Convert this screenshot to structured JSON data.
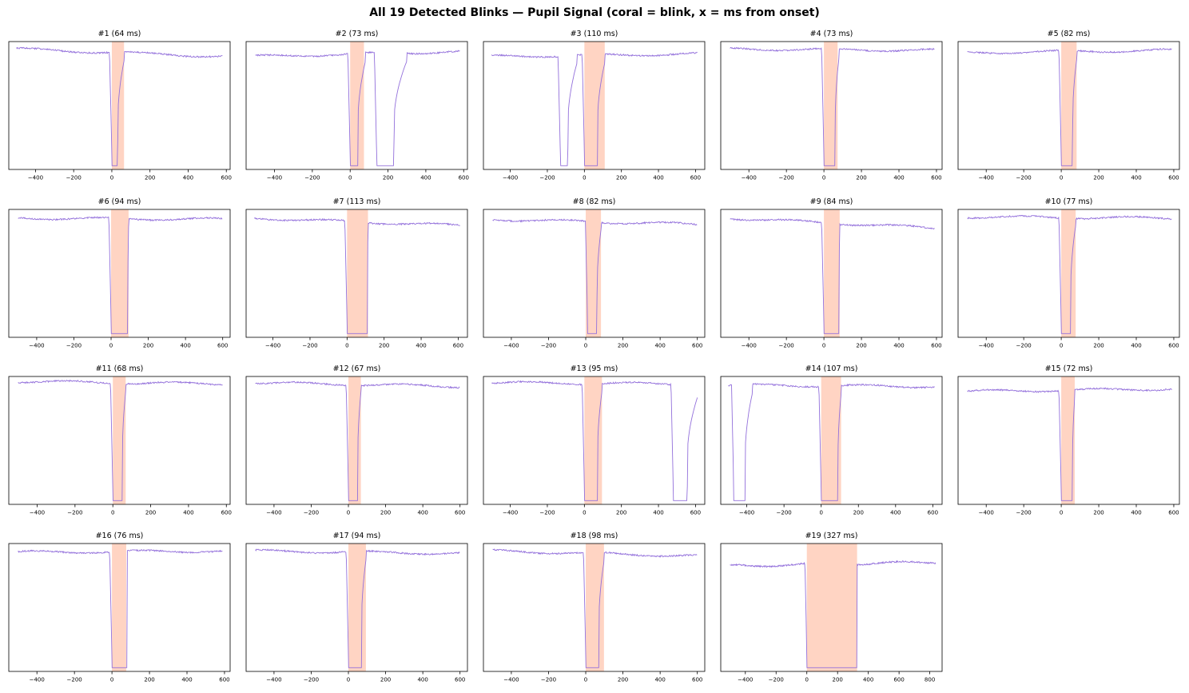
{
  "figure": {
    "title": "All 19 Detected Blinks — Pupil Signal (coral = blink, x = ms from onset)"
  },
  "colors": {
    "signal": "#9370DB",
    "blink": "#FFA07A",
    "axes": "#000000"
  },
  "chart_data": [
    {
      "type": "line",
      "title": "#1 (64 ms)",
      "blink_ms": 64,
      "xlim": [
        -540,
        620
      ],
      "xticks": [
        -400,
        -200,
        0,
        200,
        400,
        600
      ],
      "baseline": [
        0.94,
        0.88
      ],
      "dips": [
        {
          "start": 0,
          "end": 30,
          "off": 64
        }
      ],
      "grid": false,
      "legend": "none"
    },
    {
      "type": "line",
      "title": "#2 (73 ms)",
      "blink_ms": 73,
      "xlim": [
        -550,
        620
      ],
      "xticks": [
        -400,
        -200,
        0,
        200,
        400,
        600
      ],
      "baseline": [
        0.88,
        0.92
      ],
      "dips": [
        {
          "start": 0,
          "end": 40,
          "off": 80
        },
        {
          "start": 140,
          "end": 230,
          "off": 300
        }
      ],
      "grid": false,
      "legend": "none"
    },
    {
      "type": "line",
      "title": "#3 (110 ms)",
      "blink_ms": 110,
      "xlim": [
        -545,
        650
      ],
      "xticks": [
        -400,
        -200,
        0,
        200,
        400,
        600
      ],
      "baseline": [
        0.88,
        0.9
      ],
      "dips": [
        {
          "start": -130,
          "end": -90,
          "off": -40
        },
        {
          "start": 0,
          "end": 70,
          "off": 110
        }
      ],
      "grid": false,
      "legend": "none"
    },
    {
      "type": "line",
      "title": "#4 (73 ms)",
      "blink_ms": 73,
      "xlim": [
        -550,
        630
      ],
      "xticks": [
        -400,
        -200,
        0,
        200,
        400,
        600
      ],
      "baseline": [
        0.94,
        0.93
      ],
      "dips": [
        {
          "start": 0,
          "end": 60,
          "off": 80
        }
      ],
      "grid": false,
      "legend": "none"
    },
    {
      "type": "line",
      "title": "#5 (82 ms)",
      "blink_ms": 82,
      "xlim": [
        -550,
        630
      ],
      "xticks": [
        -400,
        -200,
        0,
        200,
        400,
        600
      ],
      "baseline": [
        0.91,
        0.93
      ],
      "dips": [
        {
          "start": 0,
          "end": 60,
          "off": 82
        }
      ],
      "grid": false,
      "legend": "none"
    },
    {
      "type": "line",
      "title": "#6 (94 ms)",
      "blink_ms": 94,
      "xlim": [
        -550,
        640
      ],
      "xticks": [
        -400,
        -200,
        0,
        200,
        400,
        600
      ],
      "baseline": [
        0.93,
        0.92
      ],
      "dips": [
        {
          "start": 0,
          "end": 90,
          "off": 94
        }
      ],
      "grid": false,
      "legend": "none"
    },
    {
      "type": "line",
      "title": "#7 (113 ms)",
      "blink_ms": 113,
      "xlim": [
        -545,
        650
      ],
      "xticks": [
        -400,
        -200,
        0,
        200,
        400,
        600
      ],
      "baseline": [
        0.93,
        0.87
      ],
      "dips": [
        {
          "start": 0,
          "end": 110,
          "off": 113
        }
      ],
      "grid": false,
      "legend": "none"
    },
    {
      "type": "line",
      "title": "#8 (82 ms)",
      "blink_ms": 82,
      "xlim": [
        -550,
        640
      ],
      "xticks": [
        -400,
        -200,
        0,
        200,
        400,
        600
      ],
      "baseline": [
        0.92,
        0.88
      ],
      "dips": [
        {
          "start": 10,
          "end": 60,
          "off": 82
        }
      ],
      "grid": false,
      "legend": "none"
    },
    {
      "type": "line",
      "title": "#9 (84 ms)",
      "blink_ms": 84,
      "xlim": [
        -550,
        630
      ],
      "xticks": [
        -400,
        -200,
        0,
        200,
        400,
        600
      ],
      "baseline": [
        0.93,
        0.85
      ],
      "dips": [
        {
          "start": 0,
          "end": 80,
          "off": 84
        }
      ],
      "grid": false,
      "legend": "none"
    },
    {
      "type": "line",
      "title": "#10 (77 ms)",
      "blink_ms": 77,
      "xlim": [
        -550,
        630
      ],
      "xticks": [
        -400,
        -200,
        0,
        200,
        400,
        600
      ],
      "baseline": [
        0.94,
        0.93
      ],
      "dips": [
        {
          "start": 0,
          "end": 50,
          "off": 77
        }
      ],
      "grid": false,
      "legend": "none"
    },
    {
      "type": "line",
      "title": "#11 (68 ms)",
      "blink_ms": 68,
      "xlim": [
        -550,
        620
      ],
      "xticks": [
        -400,
        -200,
        0,
        200,
        400,
        600
      ],
      "baseline": [
        0.96,
        0.94
      ],
      "dips": [
        {
          "start": 0,
          "end": 50,
          "off": 68
        }
      ],
      "grid": false,
      "legend": "none"
    },
    {
      "type": "line",
      "title": "#12 (67 ms)",
      "blink_ms": 67,
      "xlim": [
        -550,
        640
      ],
      "xticks": [
        -400,
        -200,
        0,
        200,
        400,
        600
      ],
      "baseline": [
        0.95,
        0.92
      ],
      "dips": [
        {
          "start": 0,
          "end": 50,
          "off": 67
        }
      ],
      "grid": false,
      "legend": "none"
    },
    {
      "type": "line",
      "title": "#13 (95 ms)",
      "blink_ms": 95,
      "xlim": [
        -545,
        650
      ],
      "xticks": [
        -400,
        -200,
        0,
        200,
        400,
        600
      ],
      "baseline": [
        0.95,
        0.94
      ],
      "dips": [
        {
          "start": 0,
          "end": 70,
          "off": 95
        },
        {
          "start": 480,
          "end": 555,
          "off": 620
        }
      ],
      "grid": false,
      "legend": "none"
    },
    {
      "type": "line",
      "title": "#14 (107 ms)",
      "blink_ms": 107,
      "xlim": [
        -540,
        650
      ],
      "xticks": [
        -400,
        -200,
        0,
        200,
        400,
        600
      ],
      "baseline": [
        0.93,
        0.92
      ],
      "dips": [
        {
          "start": -470,
          "end": -410,
          "off": -370
        },
        {
          "start": 0,
          "end": 90,
          "off": 107
        }
      ],
      "grid": false,
      "legend": "none"
    },
    {
      "type": "line",
      "title": "#15 (72 ms)",
      "blink_ms": 72,
      "xlim": [
        -550,
        630
      ],
      "xticks": [
        -400,
        -200,
        0,
        200,
        400,
        600
      ],
      "baseline": [
        0.88,
        0.9
      ],
      "dips": [
        {
          "start": 0,
          "end": 60,
          "off": 72
        }
      ],
      "grid": false,
      "legend": "none"
    },
    {
      "type": "line",
      "title": "#16 (76 ms)",
      "blink_ms": 76,
      "xlim": [
        -550,
        630
      ],
      "xticks": [
        -400,
        -200,
        0,
        200,
        400,
        600
      ],
      "baseline": [
        0.93,
        0.94
      ],
      "dips": [
        {
          "start": 0,
          "end": 80,
          "off": 76
        }
      ],
      "grid": false,
      "legend": "none"
    },
    {
      "type": "line",
      "title": "#17 (94 ms)",
      "blink_ms": 94,
      "xlim": [
        -550,
        640
      ],
      "xticks": [
        -400,
        -200,
        0,
        200,
        400,
        600
      ],
      "baseline": [
        0.94,
        0.92
      ],
      "dips": [
        {
          "start": 0,
          "end": 70,
          "off": 94
        }
      ],
      "grid": false,
      "legend": "none"
    },
    {
      "type": "line",
      "title": "#18 (98 ms)",
      "blink_ms": 98,
      "xlim": [
        -550,
        640
      ],
      "xticks": [
        -400,
        -200,
        0,
        200,
        400,
        600
      ],
      "baseline": [
        0.94,
        0.9
      ],
      "dips": [
        {
          "start": 0,
          "end": 70,
          "off": 98
        }
      ],
      "grid": false,
      "legend": "none"
    },
    {
      "type": "line",
      "title": "#19 (327 ms)",
      "blink_ms": 327,
      "xlim": [
        -560,
        880
      ],
      "xticks": [
        -400,
        -200,
        0,
        200,
        400,
        600,
        800
      ],
      "baseline": [
        0.82,
        0.85
      ],
      "dips": [
        {
          "start": 0,
          "end": 327,
          "off": 327
        }
      ],
      "grid": false,
      "legend": "none"
    }
  ]
}
